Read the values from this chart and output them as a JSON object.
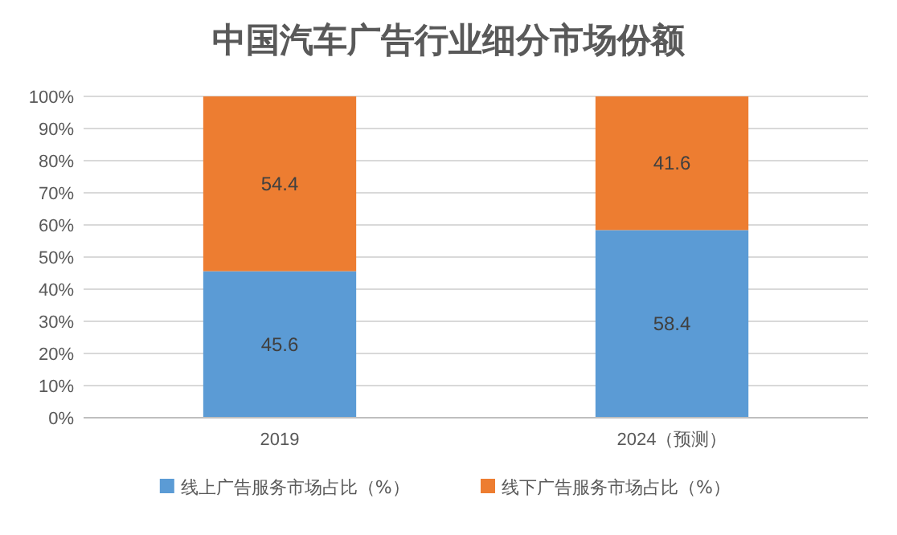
{
  "chart_data": {
    "type": "bar",
    "title": "中国汽车广告行业细分市场份额",
    "categories": [
      "2019",
      "2024（预测）"
    ],
    "stacked": true,
    "series": [
      {
        "name": "线上广告服务市场占比（%）",
        "color": "#5b9bd5",
        "values": [
          45.6,
          58.4
        ]
      },
      {
        "name": "线下广告服务市场占比（%）",
        "color": "#ed7d31",
        "values": [
          54.4,
          41.6
        ]
      }
    ],
    "ylim": [
      0,
      100
    ],
    "yticks": [
      {
        "value": 0,
        "label": "0%"
      },
      {
        "value": 10,
        "label": "10%"
      },
      {
        "value": 20,
        "label": "20%"
      },
      {
        "value": 30,
        "label": "30%"
      },
      {
        "value": 40,
        "label": "40%"
      },
      {
        "value": 50,
        "label": "50%"
      },
      {
        "value": 60,
        "label": "60%"
      },
      {
        "value": 70,
        "label": "70%"
      },
      {
        "value": 80,
        "label": "80%"
      },
      {
        "value": 90,
        "label": "90%"
      },
      {
        "value": 100,
        "label": "100%"
      }
    ],
    "grid": "y",
    "legend": "bottom",
    "data_labels": true
  }
}
